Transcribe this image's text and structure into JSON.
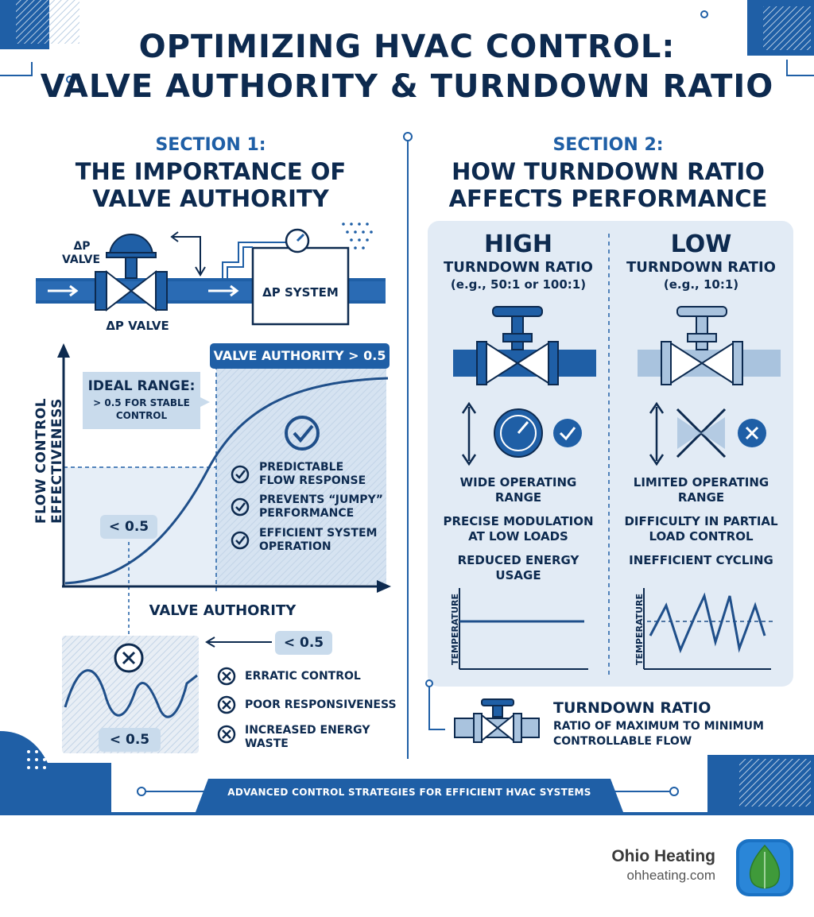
{
  "header": {
    "title_line1": "OPTIMIZING HVAC CONTROL:",
    "title_line2": "VALVE AUTHORITY & TURNDOWN RATIO"
  },
  "section1": {
    "kicker": "SECTION 1:",
    "heading_line1": "THE IMPORTANCE OF",
    "heading_line2": "VALVE AUTHORITY",
    "valve_label_top_1": "ΔP",
    "valve_label_top_2": "VALVE",
    "valve_label_bottom": "ΔP VALVE",
    "system_label": "ΔP SYSTEM",
    "chart_banner": "VALVE AUTHORITY > 0.5",
    "ideal_title": "IDEAL RANGE:",
    "ideal_line2": "> 0.5 FOR STABLE",
    "ideal_line3": "CONTROL",
    "below_marker": "< 0.5",
    "y_axis_label": "FLOW CONTROL EFFECTIVENESS",
    "x_axis_label": "VALVE AUTHORITY",
    "benefits": [
      {
        "line1": "PREDICTABLE",
        "line2": "FLOW RESPONSE"
      },
      {
        "line1": "PREVENTS “JUMPY”",
        "line2": "PERFORMANCE"
      },
      {
        "line1": "EFFICIENT SYSTEM",
        "line2": "OPERATION"
      }
    ],
    "low_tag": "< 0.5",
    "low_box_tag": "< 0.5",
    "problems": [
      {
        "line1": "ERRATIC CONTROL",
        "line2": ""
      },
      {
        "line1": "POOR RESPONSIVENESS",
        "line2": ""
      },
      {
        "line1": "INCREASED ENERGY",
        "line2": "WASTE"
      }
    ]
  },
  "section2": {
    "kicker": "SECTION 2:",
    "heading_line1": "HOW TURNDOWN RATIO",
    "heading_line2": "AFFECTS PERFORMANCE",
    "high": {
      "title": "HIGH",
      "subtitle": "TURNDOWN RATIO",
      "example": "(e.g., 50:1 or 100:1)",
      "point1_l1": "WIDE OPERATING",
      "point1_l2": "RANGE",
      "point2_l1": "PRECISE MODULATION",
      "point2_l2": "AT LOW LOADS",
      "point3_l1": "REDUCED ENERGY",
      "point3_l2": "USAGE",
      "graph_axis": "TEMPERATURE"
    },
    "low": {
      "title": "LOW",
      "subtitle": "TURNDOWN RATIO",
      "example": "(e.g., 10:1)",
      "point1_l1": "LIMITED OPERATING",
      "point1_l2": "RANGE",
      "point2_l1": "DIFFICULTY IN PARTIAL",
      "point2_l2": "LOAD CONTROL",
      "point3_l1": "INEFFICIENT CYCLING",
      "point3_l2": "",
      "graph_axis": "TEMPERATURE"
    },
    "definition_title": "TURNDOWN RATIO",
    "definition_line1": "RATIO OF MAXIMUM TO MINIMUM",
    "definition_line2": "CONTROLLABLE FLOW"
  },
  "footer": {
    "banner": "ADVANCED CONTROL STRATEGIES FOR EFFICIENT HVAC SYSTEMS",
    "brand_name": "Ohio Heating",
    "brand_url": "ohheating.com"
  },
  "colors": {
    "navy": "#0d2a4f",
    "blue": "#1f5fa6",
    "light_blue": "#dce8f4",
    "panel": "#e6eef7",
    "brand_green": "#3f9a3a"
  }
}
